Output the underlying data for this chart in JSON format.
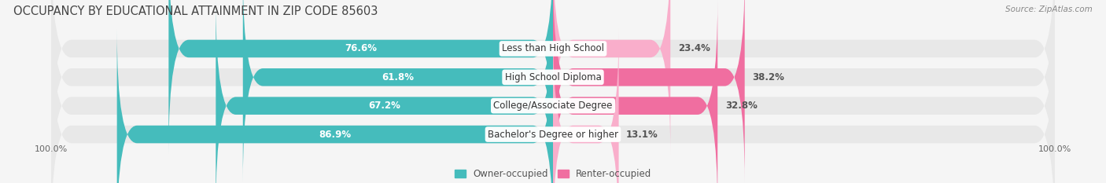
{
  "title": "OCCUPANCY BY EDUCATIONAL ATTAINMENT IN ZIP CODE 85603",
  "source": "Source: ZipAtlas.com",
  "categories": [
    "Less than High School",
    "High School Diploma",
    "College/Associate Degree",
    "Bachelor's Degree or higher"
  ],
  "owner_pct": [
    76.6,
    61.8,
    67.2,
    86.9
  ],
  "renter_pct": [
    23.4,
    38.2,
    32.8,
    13.1
  ],
  "owner_color": "#45BCBC",
  "renter_color": "#F06EA0",
  "renter_color_light": "#F9AECB",
  "bg_color": "#f5f5f5",
  "bar_bg_color": "#e8e8e8",
  "title_fontsize": 10.5,
  "source_fontsize": 7.5,
  "label_fontsize": 8.5,
  "cat_fontsize": 8.5,
  "axis_label_fontsize": 8,
  "legend_fontsize": 8.5,
  "bar_height": 0.62,
  "x_left_label": "100.0%",
  "x_right_label": "100.0%"
}
